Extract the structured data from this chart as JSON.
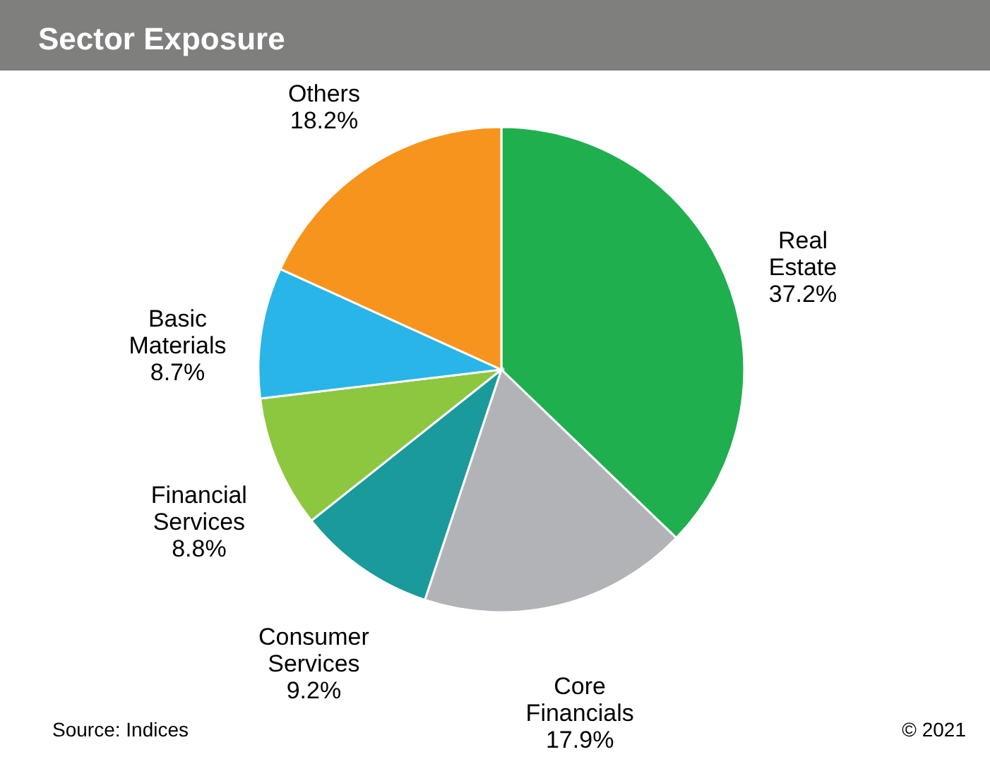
{
  "chart_data": {
    "type": "pie",
    "title": "Sector Exposure",
    "categories": [
      "Real Estate",
      "Core Financials",
      "Consumer Services",
      "Financial Services",
      "Basic Materials",
      "Others"
    ],
    "values": [
      37.2,
      17.9,
      9.2,
      8.8,
      8.7,
      18.2
    ],
    "colors": [
      "#1faf4f",
      "#b1b3b6",
      "#1a9a9a",
      "#8dc63f",
      "#29b5e8",
      "#f7941d"
    ],
    "value_labels": [
      "37.2%",
      "17.9%",
      "9.2%",
      "8.8%",
      "8.7%",
      "18.2%"
    ],
    "annotations": [
      "Source: Indices",
      "© 2021"
    ]
  }
}
